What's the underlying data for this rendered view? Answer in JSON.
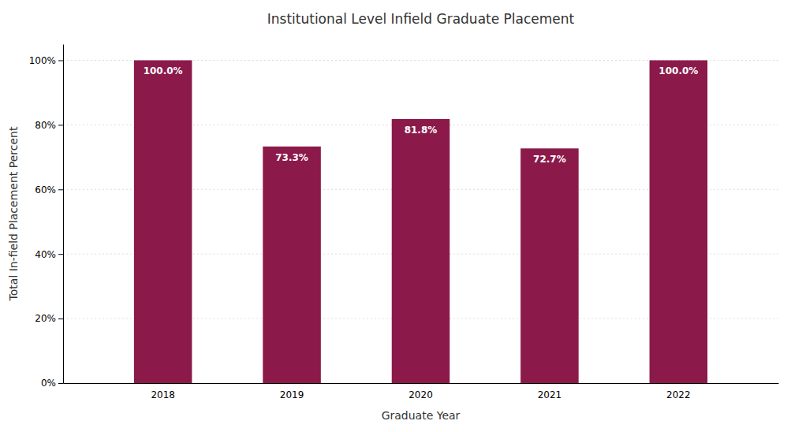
{
  "chart_data": {
    "type": "bar",
    "title": "Institutional Level Infield Graduate Placement",
    "xlabel": "Graduate Year",
    "ylabel": "Total In-field Placement Percent",
    "categories": [
      "2018",
      "2019",
      "2020",
      "2021",
      "2022"
    ],
    "values": [
      100.0,
      73.3,
      81.8,
      72.7,
      100.0
    ],
    "value_labels": [
      "100.0%",
      "73.3%",
      "81.8%",
      "72.7%",
      "100.0%"
    ],
    "data_labels": true,
    "color": "#8B1A4A",
    "ylim": [
      0,
      105
    ],
    "yticks": [
      {
        "value": 0,
        "label": "0%"
      },
      {
        "value": 20,
        "label": "20%"
      },
      {
        "value": 40,
        "label": "40%"
      },
      {
        "value": 60,
        "label": "60%"
      },
      {
        "value": 80,
        "label": "80%"
      },
      {
        "value": 100,
        "label": "100%"
      }
    ],
    "grid": true
  }
}
